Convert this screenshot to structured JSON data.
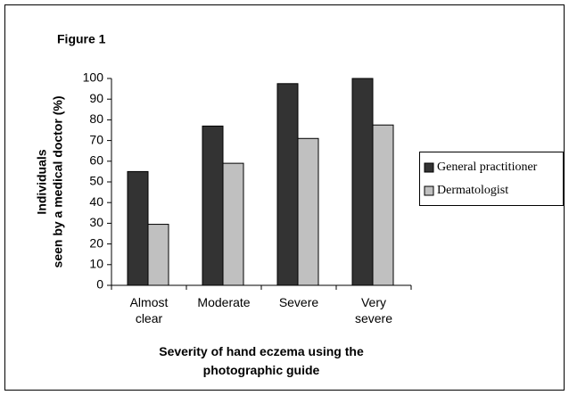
{
  "chart_data": {
    "type": "bar",
    "title": "Figure 1",
    "ylabel": [
      "Individuals",
      "seen by a medical doctor (%)"
    ],
    "xlabel": "Severity of hand eczema using the photographic guide",
    "categories": [
      "Almost clear",
      "Moderate",
      "Severe",
      "Very severe"
    ],
    "series": [
      {
        "name": "General practitioner",
        "color": "#333333",
        "values": [
          55,
          77,
          97.5,
          100
        ]
      },
      {
        "name": "Dermatologist",
        "color": "#c0c0c0",
        "values": [
          29.5,
          59,
          71,
          77.5
        ]
      }
    ],
    "ylim": [
      0,
      100
    ],
    "yticks": [
      0,
      10,
      20,
      30,
      40,
      50,
      60,
      70,
      80,
      90,
      100
    ],
    "legend": "right"
  }
}
